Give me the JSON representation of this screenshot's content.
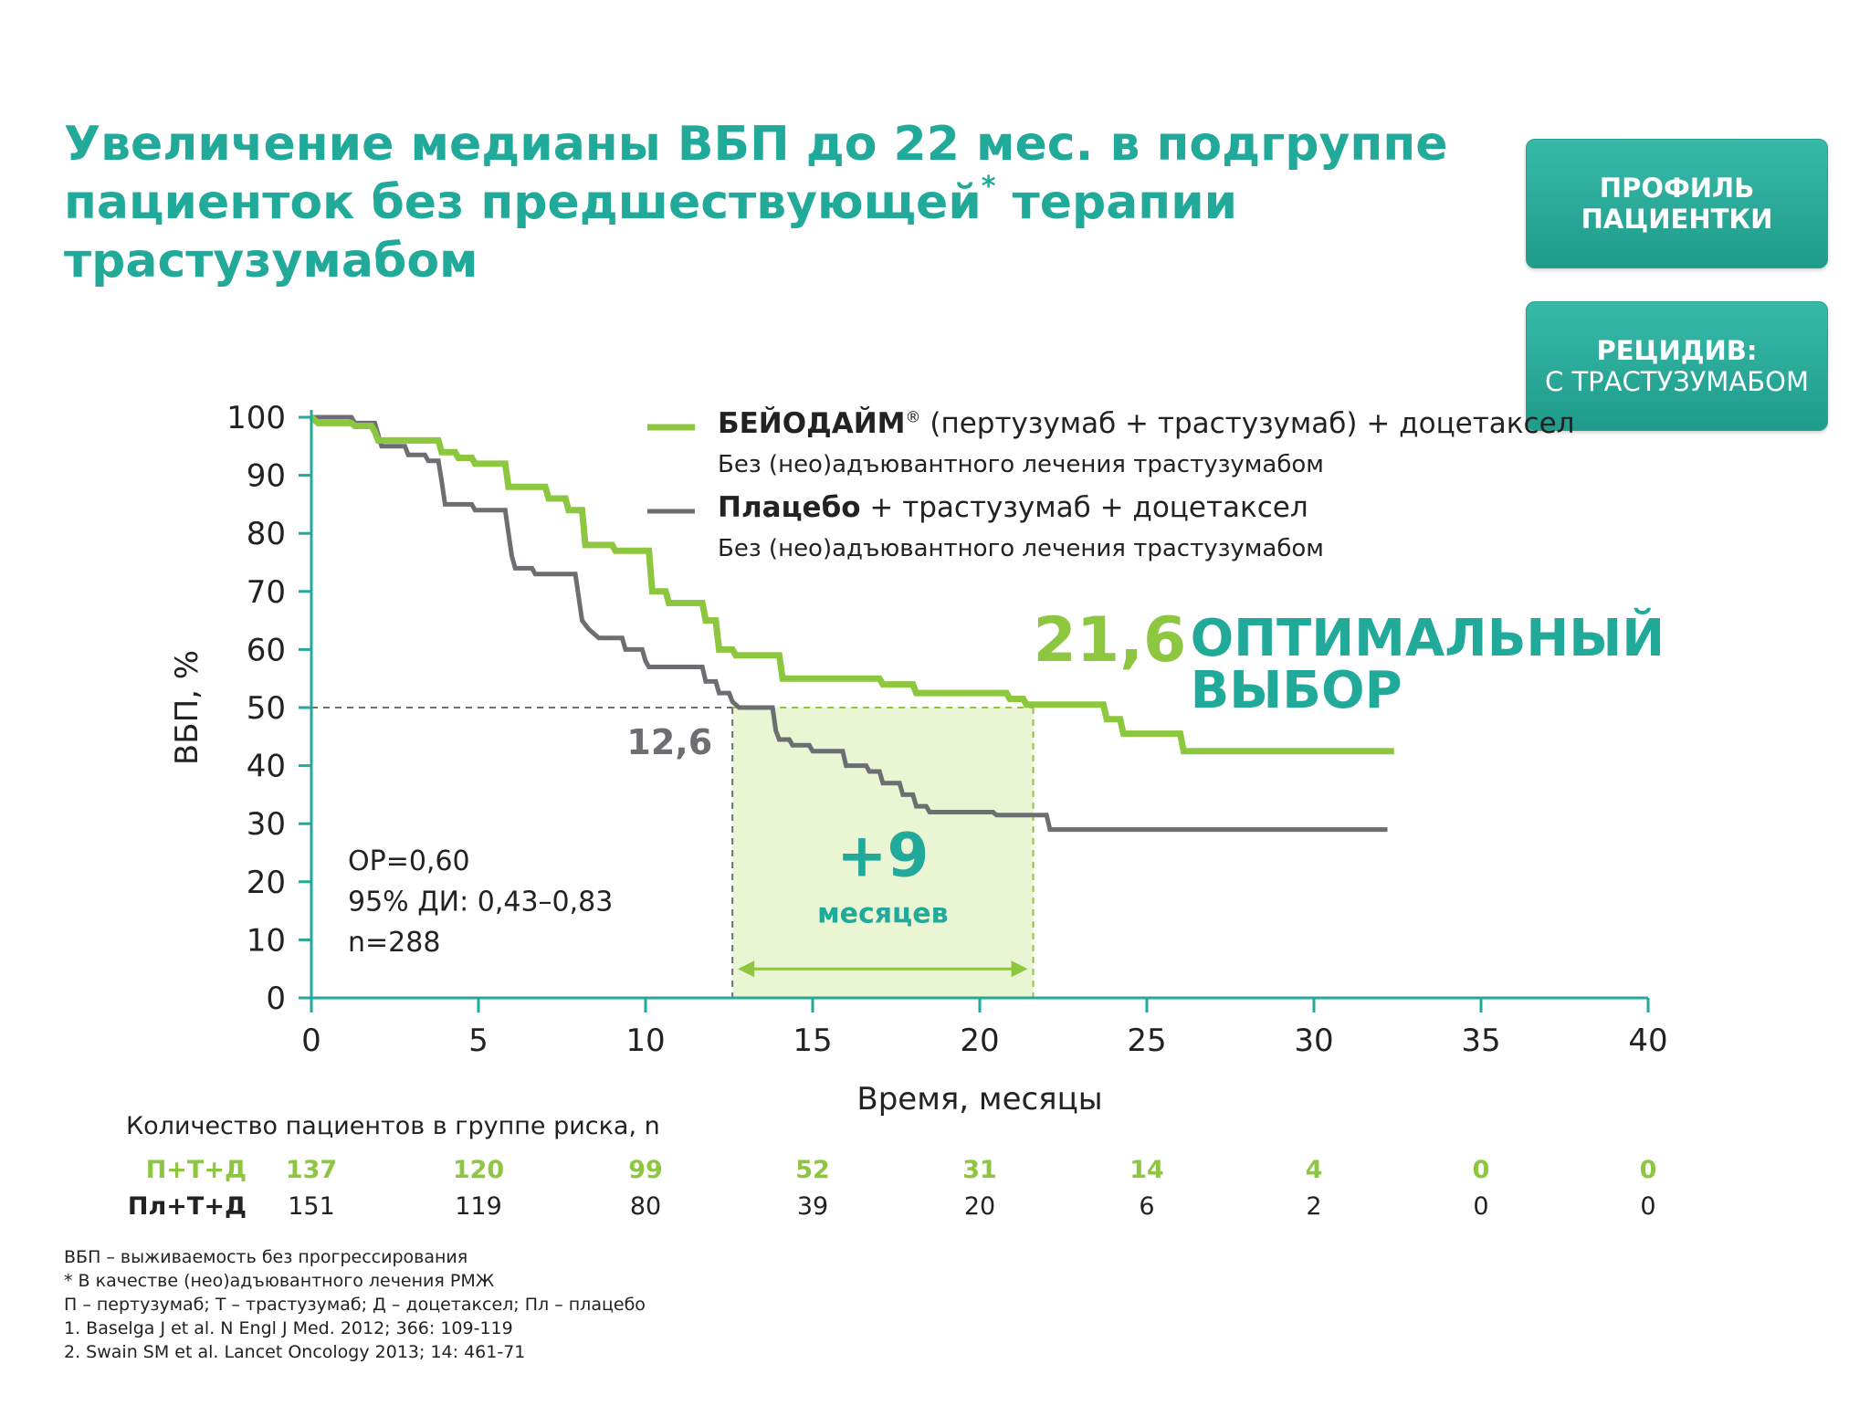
{
  "title_line1": "Увеличение медианы ВБП до 22 мес. в подгруппе",
  "title_line2a": "пациенток без предшествующей",
  "title_star": "*",
  "title_line2b": " терапии",
  "title_line3": "трастузумабом",
  "buttons": {
    "profile_line1": "ПРОФИЛЬ",
    "profile_line2": "ПАЦИЕНТКИ",
    "relapse_line1": "РЕЦИДИВ:",
    "relapse_line2": "С ТРАСТУЗУМАБОМ"
  },
  "legend": {
    "s1_name": "БЕЙОДАЙМ",
    "s1_reg": "®",
    "s1_rest": " (пертузумаб + трастузумаб) + доцетаксел",
    "s1_sub": "Без (нео)адъювантного лечения трастузумабом",
    "s2_name": "Плацебо",
    "s2_rest": " + трастузумаб + доцетаксел",
    "s2_sub": "Без (нео)адъювантного лечения трастузумабом"
  },
  "annotations": {
    "median_treat": "21,6",
    "optimal_line1": "ОПТИМАЛЬНЫЙ",
    "optimal_line2": "ВЫБОР",
    "median_placebo": "12,6",
    "gain": "+9",
    "gain_unit": "месяцев",
    "hr": "ОР=0,60",
    "ci": "95% ДИ: 0,43–0,83",
    "n": "n=288"
  },
  "risk_table": {
    "caption": "Количество пациентов в группе риска, n",
    "times": [
      0,
      5,
      10,
      15,
      20,
      25,
      30,
      35,
      40
    ],
    "rows": [
      {
        "label": "П+Т+Д",
        "values": [
          "137",
          "120",
          "99",
          "52",
          "31",
          "14",
          "4",
          "0",
          "0"
        ]
      },
      {
        "label": "Пл+Т+Д",
        "values": [
          "151",
          "119",
          "80",
          "39",
          "20",
          "6",
          "2",
          "0",
          "0"
        ]
      }
    ]
  },
  "footnotes": [
    "ВБП – выживаемость без прогрессирования",
    "* В качестве (нео)адъювантного лечения РМЖ",
    "П – пертузумаб; Т – трастузумаб; Д – доцетаксел; Пл – плацебо",
    "1. Baselga J et al. N Engl J Med. 2012; 366: 109-119",
    "2. Swain SM et al. Lancet Oncology 2013; 14: 461-71"
  ],
  "chart_data": {
    "type": "line",
    "xlabel": "Время, месяцы",
    "ylabel": "ВБП, %",
    "xlim": [
      0,
      40
    ],
    "ylim": [
      0,
      100
    ],
    "xticks": [
      0,
      5,
      10,
      15,
      20,
      25,
      30,
      35,
      40
    ],
    "yticks": [
      0,
      10,
      20,
      30,
      40,
      50,
      60,
      70,
      80,
      90,
      100
    ],
    "median_line_y": 50,
    "medians": {
      "treatment": 21.6,
      "placebo": 12.6
    },
    "colors": {
      "treatment": "#8dc63f",
      "placebo": "#6d6e71",
      "shade": "#e9f5d3",
      "accent": "#21a99a"
    },
    "series": [
      {
        "name": "БЕЙОДАЙМ (пертузумаб + трастузумаб) + доцетаксел",
        "points": [
          [
            0,
            100
          ],
          [
            0.2,
            99
          ],
          [
            1.2,
            99
          ],
          [
            1.3,
            98.5
          ],
          [
            1.8,
            98.5
          ],
          [
            1.9,
            97.5
          ],
          [
            2,
            96
          ],
          [
            3.8,
            96
          ],
          [
            3.9,
            94
          ],
          [
            4.3,
            94
          ],
          [
            4.4,
            93
          ],
          [
            4.8,
            93
          ],
          [
            4.9,
            92
          ],
          [
            5.8,
            92
          ],
          [
            5.9,
            88
          ],
          [
            7,
            88
          ],
          [
            7.1,
            86
          ],
          [
            7.6,
            86
          ],
          [
            7.7,
            84
          ],
          [
            8.1,
            84
          ],
          [
            8.2,
            78
          ],
          [
            9,
            78
          ],
          [
            9.1,
            77
          ],
          [
            10.1,
            77
          ],
          [
            10.2,
            70
          ],
          [
            10.6,
            70
          ],
          [
            10.7,
            68
          ],
          [
            11.7,
            68
          ],
          [
            11.8,
            65
          ],
          [
            12.1,
            65
          ],
          [
            12.2,
            60
          ],
          [
            12.6,
            60
          ],
          [
            12.7,
            59
          ],
          [
            14,
            59
          ],
          [
            14.1,
            55
          ],
          [
            17,
            55
          ],
          [
            17.1,
            54
          ],
          [
            18,
            54
          ],
          [
            18.1,
            52.5
          ],
          [
            20.8,
            52.5
          ],
          [
            20.9,
            51.5
          ],
          [
            21.3,
            51.5
          ],
          [
            21.4,
            50.5
          ],
          [
            23.7,
            50.5
          ],
          [
            23.8,
            48
          ],
          [
            24.2,
            48
          ],
          [
            24.3,
            45.5
          ],
          [
            26,
            45.5
          ],
          [
            26.1,
            42.5
          ],
          [
            32.4,
            42.5
          ]
        ]
      },
      {
        "name": "Плацебо + трастузумаб + доцетаксел",
        "points": [
          [
            0,
            100
          ],
          [
            1.2,
            100
          ],
          [
            1.3,
            99
          ],
          [
            1.9,
            99
          ],
          [
            2,
            97
          ],
          [
            2.1,
            95
          ],
          [
            2.8,
            95
          ],
          [
            2.9,
            93.5
          ],
          [
            3.4,
            93.5
          ],
          [
            3.5,
            92.5
          ],
          [
            3.8,
            92.5
          ],
          [
            3.9,
            89
          ],
          [
            4,
            85
          ],
          [
            4.8,
            85
          ],
          [
            4.9,
            84
          ],
          [
            5.8,
            84
          ],
          [
            5.9,
            80
          ],
          [
            6,
            76
          ],
          [
            6.1,
            74
          ],
          [
            6.6,
            74
          ],
          [
            6.7,
            73
          ],
          [
            7.9,
            73
          ],
          [
            8,
            69
          ],
          [
            8.1,
            65
          ],
          [
            8.3,
            63.5
          ],
          [
            8.6,
            62
          ],
          [
            9.3,
            62
          ],
          [
            9.4,
            60
          ],
          [
            9.9,
            60
          ],
          [
            10,
            58
          ],
          [
            10.1,
            57
          ],
          [
            11.7,
            57
          ],
          [
            11.8,
            54.5
          ],
          [
            12.1,
            54.5
          ],
          [
            12.2,
            52.5
          ],
          [
            12.5,
            52.5
          ],
          [
            12.6,
            51
          ],
          [
            12.8,
            50
          ],
          [
            13.8,
            50
          ],
          [
            13.9,
            46
          ],
          [
            14,
            44.5
          ],
          [
            14.3,
            44.5
          ],
          [
            14.4,
            43.5
          ],
          [
            14.9,
            43.5
          ],
          [
            15,
            42.5
          ],
          [
            15.9,
            42.5
          ],
          [
            16,
            40
          ],
          [
            16.6,
            40
          ],
          [
            16.7,
            39
          ],
          [
            17,
            39
          ],
          [
            17.1,
            37
          ],
          [
            17.6,
            37
          ],
          [
            17.7,
            35
          ],
          [
            18,
            35
          ],
          [
            18.1,
            33
          ],
          [
            18.4,
            33
          ],
          [
            18.5,
            32
          ],
          [
            20.4,
            32
          ],
          [
            20.5,
            31.5
          ],
          [
            22,
            31.5
          ],
          [
            22.1,
            29
          ],
          [
            32.2,
            29
          ]
        ]
      }
    ]
  }
}
